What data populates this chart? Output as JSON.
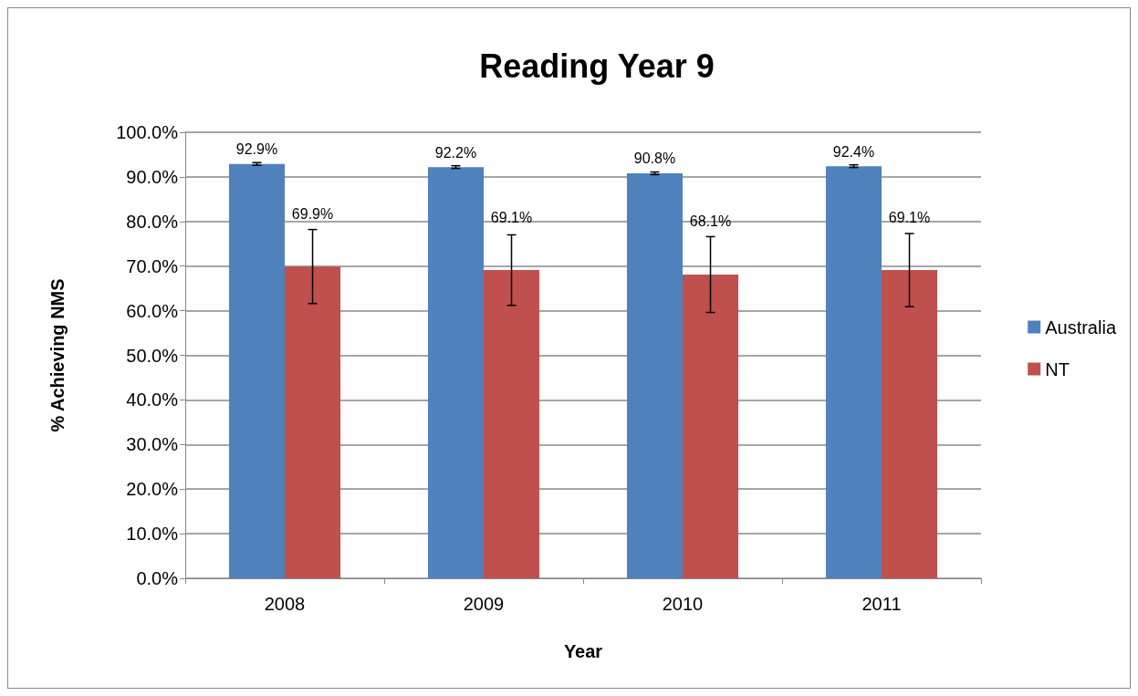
{
  "chart_data": {
    "type": "bar",
    "title": "Reading Year 9",
    "xlabel": "Year",
    "ylabel": "% Achieving NMS",
    "categories": [
      "2008",
      "2009",
      "2010",
      "2011"
    ],
    "series": [
      {
        "name": "Australia",
        "color": "#4f81bd",
        "values": [
          92.9,
          92.2,
          90.8,
          92.4
        ],
        "errors": [
          0.3,
          0.3,
          0.3,
          0.3
        ],
        "value_labels": [
          "92.9%",
          "92.2%",
          "90.8%",
          "92.4%"
        ]
      },
      {
        "name": "NT",
        "color": "#c0504d",
        "values": [
          69.9,
          69.1,
          68.1,
          69.1
        ],
        "errors": [
          8.3,
          7.9,
          8.5,
          8.2
        ],
        "value_labels": [
          "69.9%",
          "69.1%",
          "68.1%",
          "69.1%"
        ]
      }
    ],
    "ylim": [
      0,
      100
    ],
    "yticks": [
      {
        "value": 0,
        "label": "0.0%"
      },
      {
        "value": 10,
        "label": "10.0%"
      },
      {
        "value": 20,
        "label": "20.0%"
      },
      {
        "value": 30,
        "label": "30.0%"
      },
      {
        "value": 40,
        "label": "40.0%"
      },
      {
        "value": 50,
        "label": "50.0%"
      },
      {
        "value": 60,
        "label": "60.0%"
      },
      {
        "value": 70,
        "label": "70.0%"
      },
      {
        "value": 80,
        "label": "80.0%"
      },
      {
        "value": 90,
        "label": "90.0%"
      },
      {
        "value": 100,
        "label": "100.0%"
      }
    ],
    "grid": "y",
    "legend": "right"
  }
}
